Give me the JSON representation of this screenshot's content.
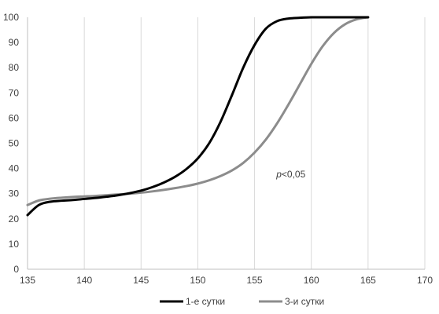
{
  "chart_data": {
    "type": "line",
    "title": "",
    "xlabel": "",
    "ylabel": "",
    "xlim": [
      135,
      170
    ],
    "ylim": [
      0,
      100
    ],
    "xticks": [
      135,
      140,
      145,
      150,
      155,
      160,
      165,
      170
    ],
    "yticks": [
      0,
      10,
      20,
      30,
      40,
      50,
      60,
      70,
      80,
      90,
      100
    ],
    "grid": "vertical",
    "legend_position": "bottom",
    "annotation": {
      "italic": "p",
      "rest": "<0,05",
      "x": 158.2,
      "y": 36.5
    },
    "series": [
      {
        "name": "1-е сутки",
        "color": "#000000",
        "x": [
          135,
          136,
          137,
          138,
          139,
          140,
          141,
          142,
          143,
          144,
          145,
          146,
          147,
          148,
          149,
          150,
          151,
          152,
          153,
          154,
          155,
          156,
          157,
          158,
          159,
          160,
          161,
          162,
          163,
          164,
          165
        ],
        "y": [
          21.5,
          25.5,
          26.8,
          27.2,
          27.5,
          27.9,
          28.3,
          28.8,
          29.4,
          30.2,
          31.2,
          32.6,
          34.4,
          36.7,
          39.8,
          44.0,
          50.0,
          58.5,
          69.0,
          80.0,
          89.0,
          95.5,
          98.5,
          99.5,
          99.8,
          100,
          100,
          100,
          100,
          100,
          100
        ]
      },
      {
        "name": "3-и сутки",
        "color": "#8c8c8c",
        "x": [
          135,
          136,
          137,
          138,
          139,
          140,
          141,
          142,
          143,
          144,
          145,
          146,
          147,
          148,
          149,
          150,
          151,
          152,
          153,
          154,
          155,
          156,
          157,
          158,
          159,
          160,
          161,
          162,
          163,
          164,
          165
        ],
        "y": [
          25.5,
          27.3,
          28.0,
          28.4,
          28.7,
          28.9,
          29.1,
          29.4,
          29.7,
          30.0,
          30.4,
          30.9,
          31.5,
          32.2,
          33.0,
          34.0,
          35.3,
          37.0,
          39.2,
          42.2,
          46.3,
          51.5,
          58.0,
          65.5,
          73.5,
          81.5,
          88.5,
          93.8,
          97.3,
          99.2,
          100
        ]
      }
    ]
  }
}
